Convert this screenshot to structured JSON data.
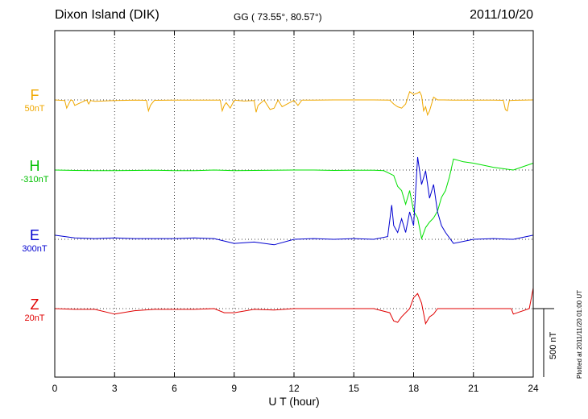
{
  "header": {
    "station": "Dixon Island (DIK)",
    "coords": "GG ( 73.55°,  80.57°)",
    "date": "2011/10/20"
  },
  "chart_data": {
    "type": "line",
    "title": "Dixon Island (DIK)",
    "xlabel": "U T (hour)",
    "ylabel": "",
    "xlim": [
      0,
      24
    ],
    "x_ticks": [
      "0",
      "3",
      "6",
      "9",
      "12",
      "15",
      "18",
      "21",
      "24"
    ],
    "grid": true,
    "scale_bar": "500 nT",
    "plotted_note": "Plotted at 2011/11/20 01:00 UT",
    "series": [
      {
        "name": "F",
        "baseline": "50nT",
        "color": "#f0a800",
        "x": [
          0,
          0.5,
          0.6,
          0.8,
          0.9,
          1.0,
          1.6,
          1.7,
          1.8,
          2.0,
          3.0,
          3.6,
          4.0,
          4.6,
          4.7,
          4.8,
          4.9,
          5.0,
          6.0,
          7.0,
          8.3,
          8.4,
          8.5,
          8.6,
          8.8,
          9.0,
          9.5,
          10.0,
          10.1,
          10.2,
          10.5,
          10.8,
          11.0,
          11.2,
          11.4,
          12.0,
          12.2,
          12.4,
          12.6,
          13.0,
          14.0,
          15.0,
          16.0,
          16.8,
          17.0,
          17.2,
          17.4,
          17.6,
          17.8,
          18.0,
          18.2,
          18.3,
          18.4,
          18.5,
          18.6,
          18.7,
          18.8,
          19.0,
          19.2,
          19.5,
          20.0,
          21.0,
          22.0,
          22.5,
          22.6,
          22.7,
          22.8,
          23.0,
          24.0
        ],
        "y": [
          0,
          -5,
          -60,
          0,
          -5,
          -40,
          0,
          -30,
          -5,
          -10,
          -5,
          -3,
          -2,
          -3,
          -80,
          -40,
          -20,
          -3,
          -1,
          -1,
          -2,
          -80,
          -40,
          -20,
          -60,
          -2,
          -8,
          -5,
          -90,
          -40,
          -2,
          -70,
          -60,
          -1,
          -50,
          -3,
          -40,
          -1,
          -2,
          -1,
          0,
          0,
          0,
          -1,
          -30,
          -50,
          -60,
          -30,
          60,
          40,
          50,
          60,
          30,
          -80,
          -50,
          -110,
          -80,
          20,
          0,
          0,
          -2,
          -2,
          -1,
          -3,
          -70,
          -80,
          -5,
          -3,
          0
        ]
      },
      {
        "name": "H",
        "baseline": "-310nT",
        "color": "#00e000",
        "x": [
          0,
          1,
          2,
          3,
          4,
          5,
          6,
          7,
          8,
          9,
          10,
          11,
          12,
          13,
          14,
          15,
          16,
          16.5,
          17.0,
          17.2,
          17.4,
          17.6,
          17.8,
          18.0,
          18.2,
          18.4,
          18.6,
          18.8,
          19.0,
          19.2,
          19.4,
          19.6,
          19.8,
          20.0,
          20.5,
          21.0,
          22.0,
          23.0,
          24.0
        ],
        "y": [
          0,
          -3,
          -5,
          -5,
          -3,
          -2,
          -5,
          -5,
          0,
          -5,
          -3,
          -2,
          0,
          0,
          -3,
          -2,
          -2,
          -5,
          -40,
          -120,
          -150,
          -250,
          -150,
          -300,
          -350,
          -500,
          -420,
          -380,
          -350,
          -300,
          -200,
          -150,
          -50,
          80,
          60,
          50,
          20,
          0,
          50
        ]
      },
      {
        "name": "E",
        "baseline": "300nT",
        "color": "#0000d0",
        "x": [
          0,
          1,
          2,
          3,
          4,
          5,
          6,
          7,
          8,
          9,
          10,
          11,
          12,
          13,
          14,
          15,
          16,
          16.7,
          16.9,
          17.0,
          17.2,
          17.4,
          17.6,
          17.8,
          18.0,
          18.2,
          18.4,
          18.6,
          18.8,
          19.0,
          19.2,
          19.4,
          19.6,
          20.0,
          21.0,
          22.0,
          23.0,
          24.0
        ],
        "y": [
          30,
          10,
          5,
          10,
          5,
          5,
          5,
          10,
          5,
          -30,
          -20,
          -40,
          0,
          5,
          0,
          5,
          0,
          20,
          250,
          100,
          50,
          150,
          50,
          200,
          100,
          600,
          400,
          500,
          300,
          400,
          200,
          100,
          50,
          -30,
          0,
          5,
          0,
          30
        ]
      },
      {
        "name": "Z",
        "baseline": "20nT",
        "color": "#e00000",
        "x": [
          0,
          1,
          2,
          3,
          4,
          5,
          6,
          7,
          8,
          8.5,
          9,
          10,
          11,
          12,
          13,
          14,
          15,
          16,
          16.8,
          17.0,
          17.2,
          17.4,
          17.6,
          17.8,
          18.0,
          18.2,
          18.4,
          18.6,
          18.8,
          19.0,
          19.2,
          19.5,
          20.0,
          21.0,
          22.0,
          22.9,
          23.0,
          23.8,
          24.0
        ],
        "y": [
          0,
          -5,
          -5,
          -40,
          -15,
          -5,
          -5,
          -5,
          0,
          -30,
          -30,
          -5,
          -10,
          0,
          0,
          0,
          0,
          0,
          -30,
          -90,
          -100,
          -60,
          -30,
          0,
          80,
          110,
          40,
          -110,
          -60,
          -40,
          0,
          0,
          0,
          0,
          0,
          0,
          -40,
          0,
          150
        ]
      }
    ]
  }
}
